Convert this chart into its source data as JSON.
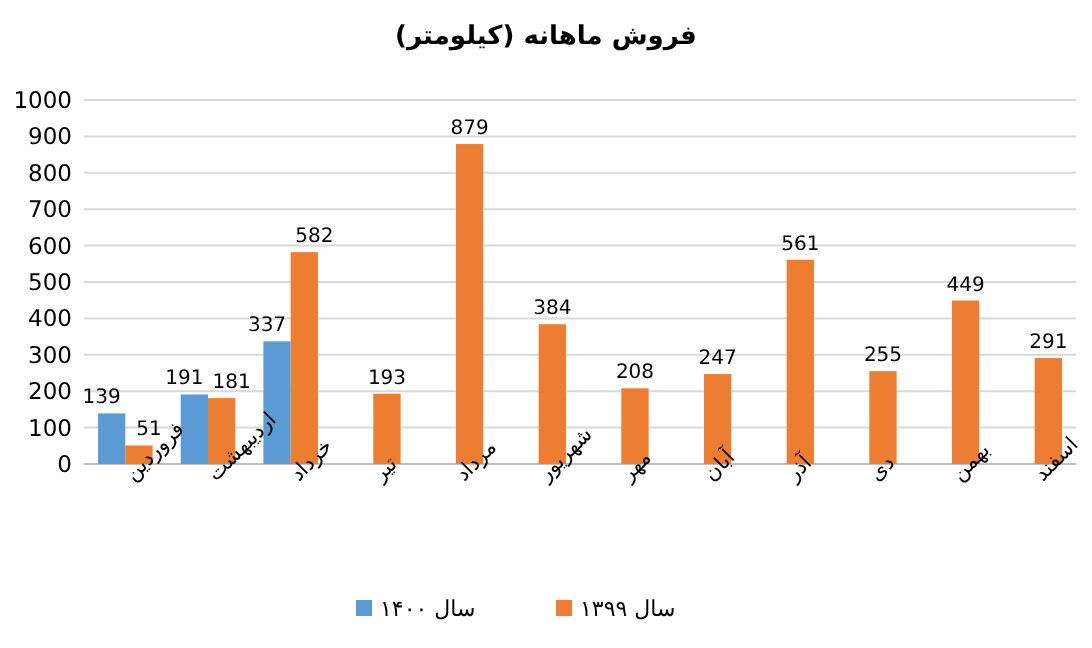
{
  "chart_data": {
    "type": "bar",
    "title": "فروش ماهانه (کیلومتر)",
    "categories": [
      "فروردین",
      "اردیبهشت",
      "خرداد",
      "تیر",
      "مرداد",
      "شهریور",
      "مهر",
      "آبان",
      "آذر",
      "دی",
      "بهمن",
      "اسفند"
    ],
    "series": [
      {
        "name": "سال ۱۴۰۰",
        "color": "#5b9bd5",
        "values": [
          139,
          191,
          337,
          null,
          null,
          null,
          null,
          null,
          null,
          null,
          null,
          null
        ]
      },
      {
        "name": "سال ۱۳۹۹",
        "color": "#ed7d31",
        "values": [
          51,
          181,
          582,
          193,
          879,
          384,
          208,
          247,
          561,
          255,
          449,
          291
        ]
      }
    ],
    "ylim": [
      0,
      1000
    ],
    "yticks": [
      0,
      100,
      200,
      300,
      400,
      500,
      600,
      700,
      800,
      900,
      1000
    ],
    "grid": "y",
    "legend": "bottom",
    "data_labels": true
  }
}
